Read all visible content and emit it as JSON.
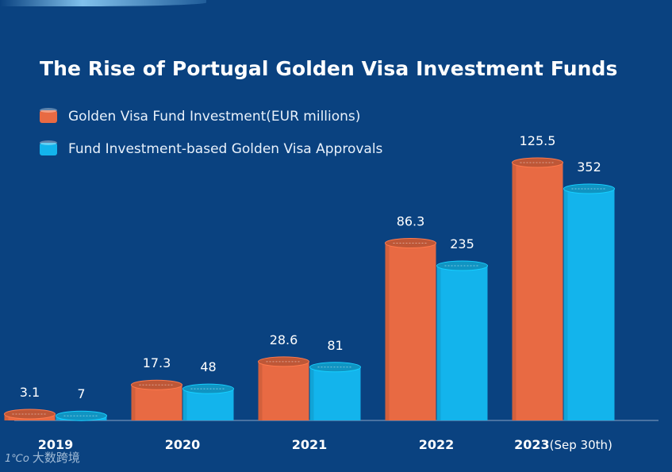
{
  "chart_data": {
    "type": "bar",
    "title": "The Rise of Portugal Golden Visa Investment Funds",
    "categories": [
      "2019",
      "2020",
      "2021",
      "2022",
      "2023"
    ],
    "category_suffix": [
      "",
      "",
      "",
      "",
      "(Sep 30th)"
    ],
    "series": [
      {
        "name": "Golden Visa Fund Investment(EUR millions)",
        "color": "#e86a43",
        "values": [
          3.1,
          17.3,
          28.6,
          86.3,
          125.5
        ],
        "labels": [
          "3.1",
          "17.3",
          "28.6",
          "86.3",
          "125.5"
        ]
      },
      {
        "name": "Fund Investment-based Golden Visa Approvals",
        "color": "#13b4ec",
        "values": [
          7,
          48,
          81,
          235,
          352
        ],
        "labels": [
          "7",
          "48",
          "81",
          "235",
          "352"
        ]
      }
    ],
    "xlabel": "",
    "ylabel": "",
    "grid": false,
    "legend": "top-left"
  },
  "watermark": {
    "logo": "1℃o",
    "text": "大数跨境"
  }
}
